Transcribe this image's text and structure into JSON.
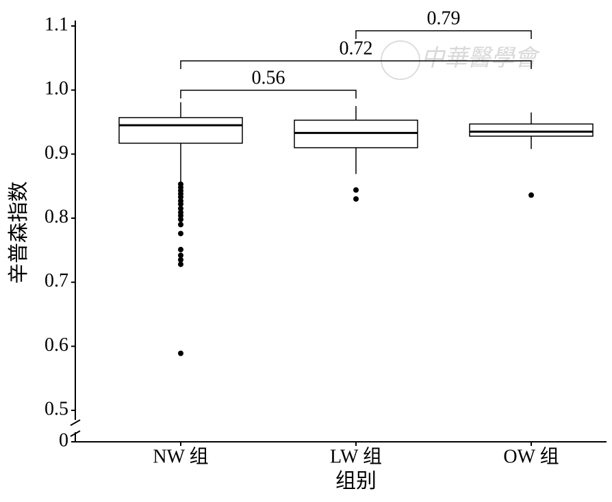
{
  "chart_data": {
    "type": "box",
    "y_label": "辛普森指数",
    "x_label": "组别",
    "categories": [
      "NW 组",
      "LW 组",
      "OW 组"
    ],
    "series": [
      {
        "min": 0.855,
        "q1": 0.917,
        "median": 0.945,
        "q3": 0.957,
        "max": 0.981,
        "outliers": [
          0.853,
          0.848,
          0.843,
          0.838,
          0.833,
          0.827,
          0.822,
          0.815,
          0.809,
          0.804,
          0.798,
          0.79,
          0.776,
          0.751,
          0.742,
          0.735,
          0.728,
          0.589
        ]
      },
      {
        "min": 0.869,
        "q1": 0.91,
        "median": 0.933,
        "q3": 0.953,
        "max": 0.975,
        "outliers": [
          0.844,
          0.83
        ]
      },
      {
        "min": 0.908,
        "q1": 0.928,
        "median": 0.935,
        "q3": 0.947,
        "max": 0.965,
        "outliers": [
          0.836
        ]
      }
    ],
    "color": "#000000",
    "ylim": [
      0,
      1.1
    ],
    "y_break": [
      0,
      0.5
    ],
    "yticks": [
      0,
      0.5,
      0.6,
      0.7,
      0.8,
      0.9,
      {
        "value": 1,
        "label": "1.0"
      },
      1.1
    ],
    "comparisons": [
      "0.56",
      "0.72",
      "0.79"
    ],
    "watermark": "中華醫學會"
  }
}
